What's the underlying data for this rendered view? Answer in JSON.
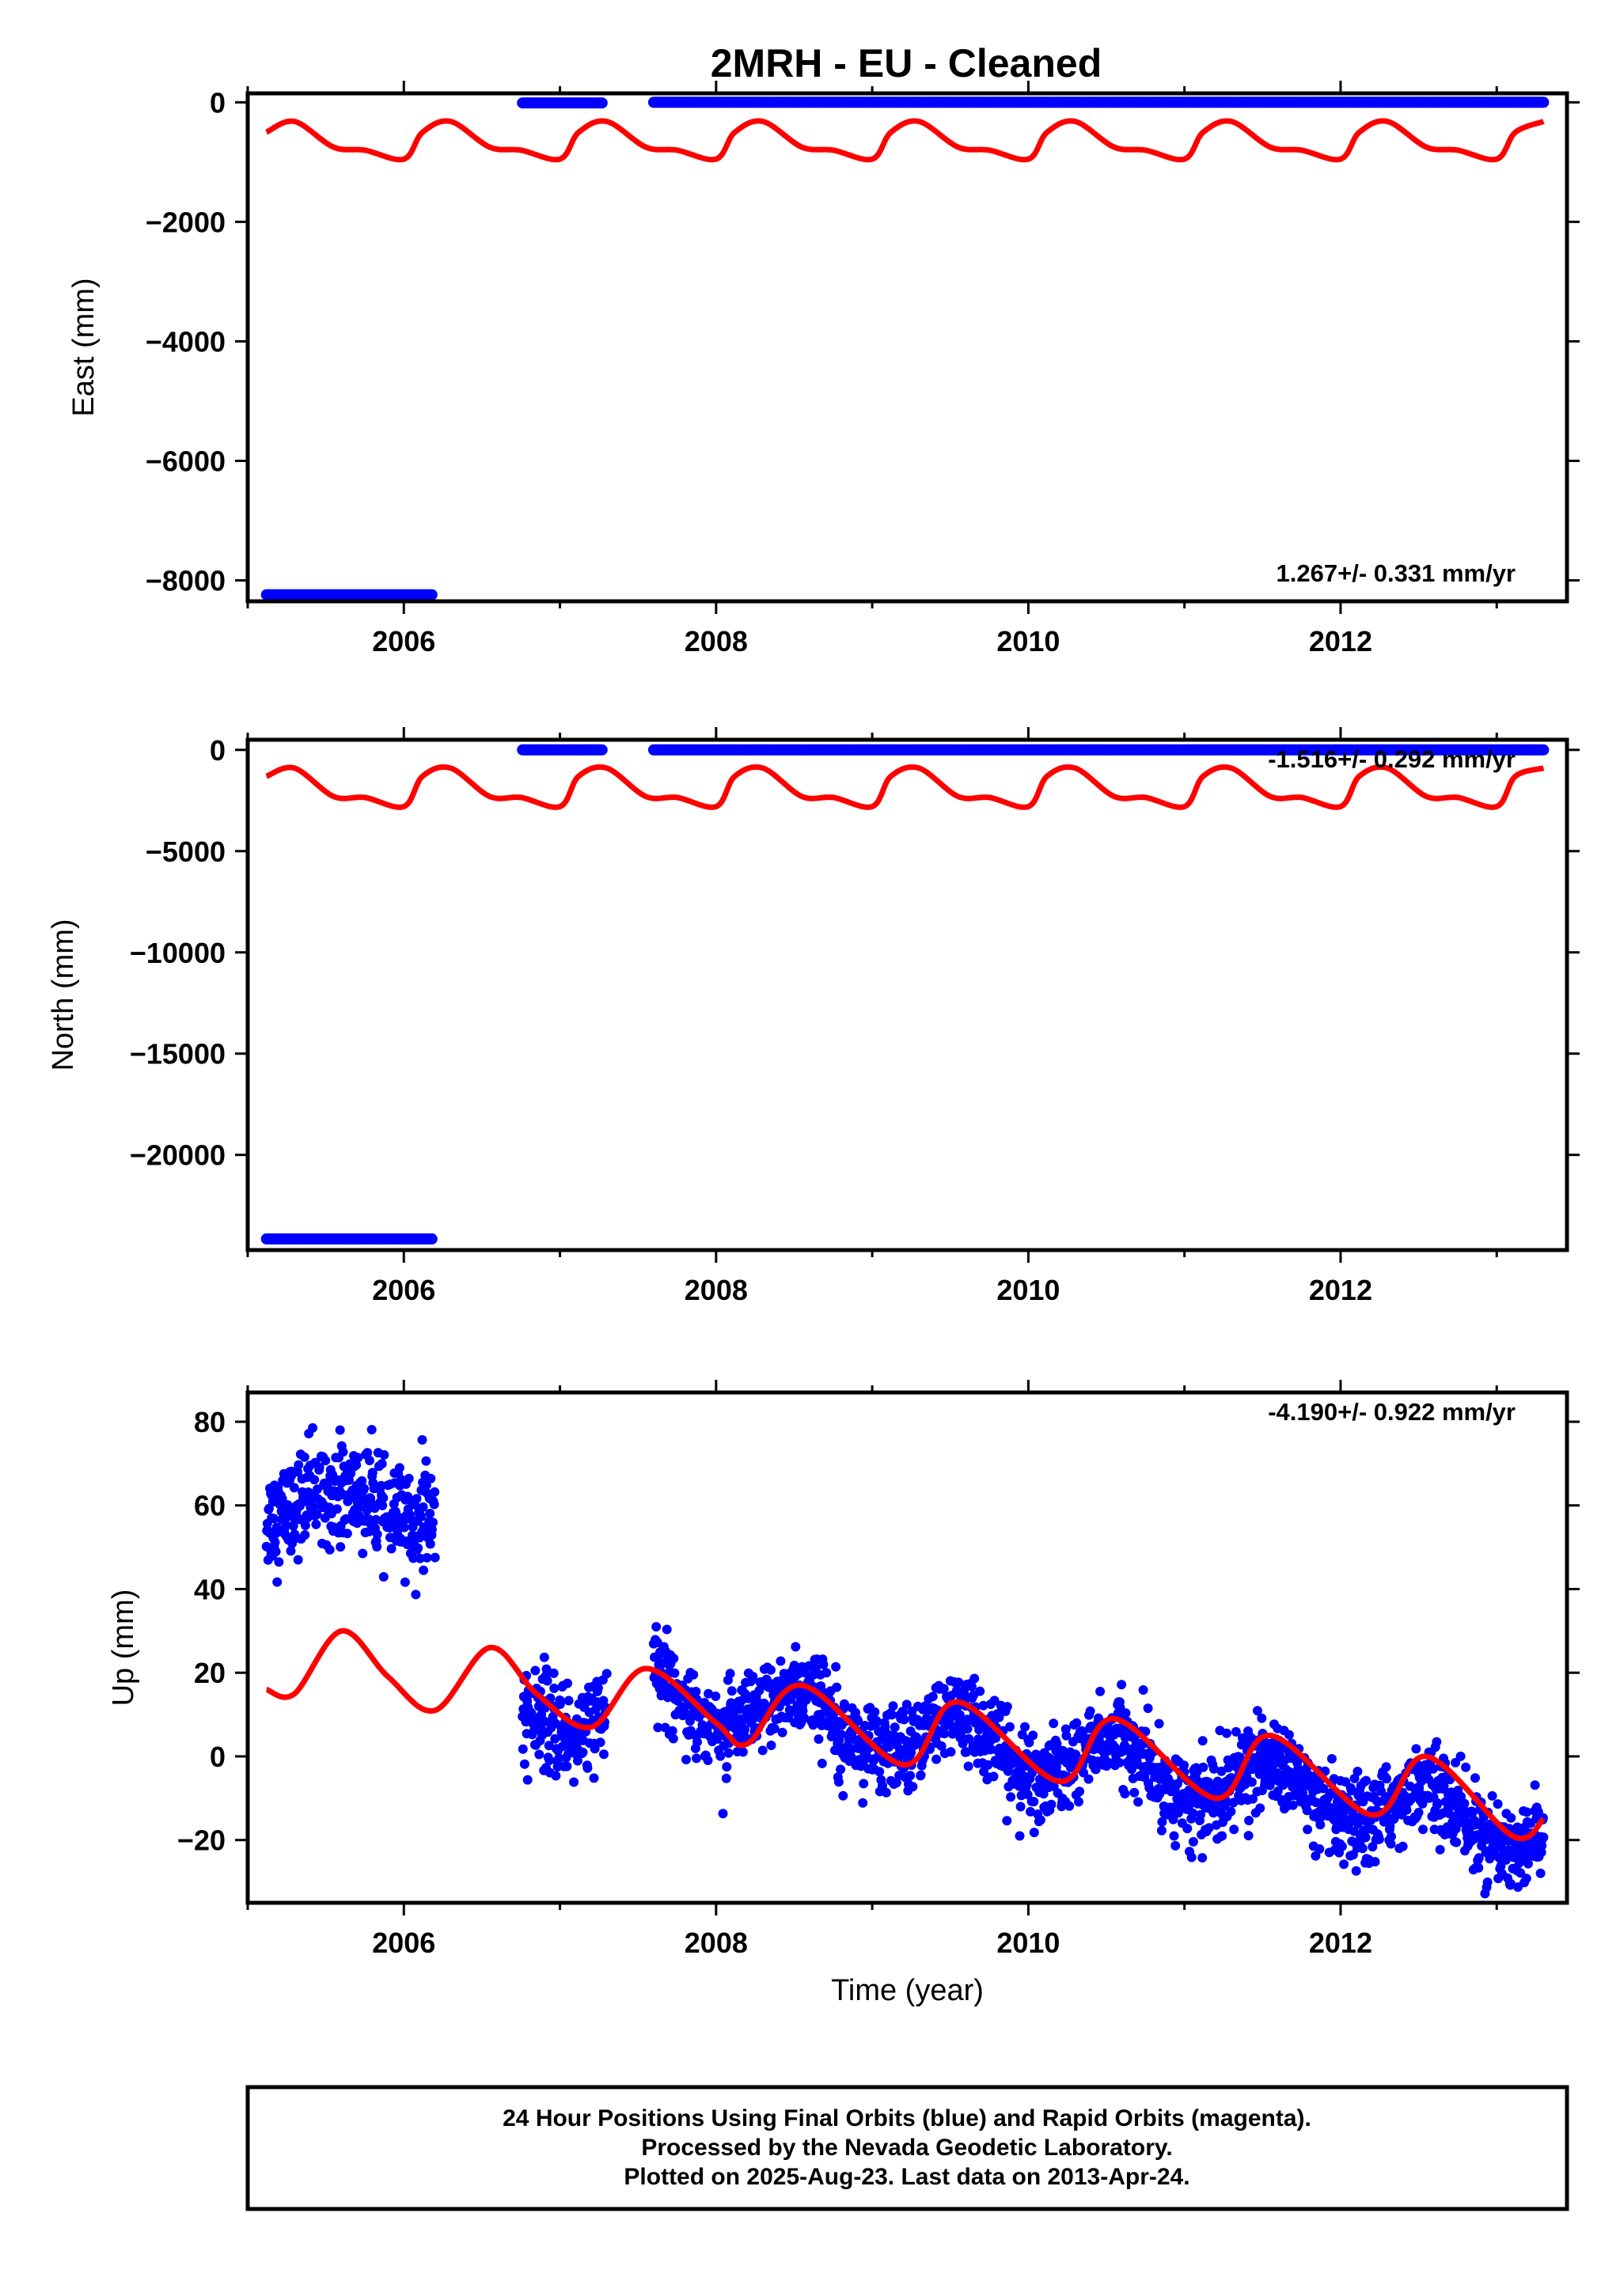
{
  "title": "2MRH  - EU - Cleaned",
  "colors": {
    "final_orbits": "#0000ff",
    "model": "#ff0000",
    "frame": "#000000"
  },
  "footer": {
    "line1": "24 Hour Positions Using Final Orbits (blue) and Rapid Orbits (magenta).",
    "line2": "Processed by the Nevada Geodetic Laboratory.",
    "line3": "Plotted on 2025-Aug-23. Last data on 2013-Apr-24."
  },
  "chart_data": [
    {
      "type": "scatter",
      "component": "east",
      "ylabel": "East (mm)",
      "xlabel": "",
      "xlim": [
        2005.0,
        2013.45
      ],
      "ylim": [
        -8350,
        150
      ],
      "x_ticks": [
        2006,
        2008,
        2010,
        2012
      ],
      "x_tick_labels": [
        "2006",
        "2008",
        "2010",
        "2012"
      ],
      "y_ticks": [
        0,
        -2000,
        -4000,
        -6000,
        -8000
      ],
      "y_tick_labels": [
        "0",
        "−2000",
        "−4000",
        "−6000",
        "−8000"
      ],
      "rate_label": "1.267+/- 0.331 mm/yr",
      "rate_position": "bottom-right",
      "grid": false,
      "data_segments": [
        {
          "x_start": 2005.12,
          "x_end": 2006.18,
          "y": -8240
        },
        {
          "x_start": 2006.76,
          "x_end": 2007.27,
          "y": -10
        },
        {
          "x_start": 2007.6,
          "x_end": 2013.3,
          "y": 0
        }
      ],
      "model_curve": {
        "x": [
          2005.12,
          2005.3,
          2005.55,
          2005.75,
          2006.0,
          2006.25,
          2006.55,
          2006.8,
          2007.0,
          2007.25,
          2007.55,
          2007.8,
          2008.0
        ],
        "y": [
          -500,
          -320,
          -750,
          -800,
          -950,
          -320,
          -750,
          -800,
          -950,
          -300,
          -780,
          -790,
          -950
        ],
        "period_years": 1.0
      }
    },
    {
      "type": "scatter",
      "component": "north",
      "ylabel": "North (mm)",
      "xlabel": "",
      "xlim": [
        2005.0,
        2013.45
      ],
      "ylim": [
        -24700,
        500
      ],
      "x_ticks": [
        2006,
        2008,
        2010,
        2012
      ],
      "x_tick_labels": [
        "2006",
        "2008",
        "2010",
        "2012"
      ],
      "y_ticks": [
        0,
        -5000,
        -10000,
        -15000,
        -20000
      ],
      "y_tick_labels": [
        "0",
        "−5000",
        "−10000",
        "−15000",
        "−20000"
      ],
      "rate_label": "-1.516+/- 0.292 mm/yr",
      "rate_position": "top-right",
      "grid": false,
      "data_segments": [
        {
          "x_start": 2005.12,
          "x_end": 2006.18,
          "y": -24150
        },
        {
          "x_start": 2006.76,
          "x_end": 2007.27,
          "y": 0
        },
        {
          "x_start": 2007.6,
          "x_end": 2013.3,
          "y": 0
        }
      ],
      "model_curve": {
        "x": [
          2005.12,
          2005.3,
          2005.55,
          2005.75,
          2006.0,
          2006.25,
          2006.55,
          2006.8,
          2007.0,
          2007.25
        ],
        "y": [
          -1300,
          -900,
          -2300,
          -2350,
          -2800,
          -900,
          -2300,
          -2350,
          -2750,
          -900
        ],
        "period_years": 1.0
      }
    },
    {
      "type": "scatter",
      "component": "up",
      "ylabel": "Up (mm)",
      "xlabel": "Time (year)",
      "xlim": [
        2005.0,
        2013.45
      ],
      "ylim": [
        -35,
        87
      ],
      "x_ticks": [
        2006,
        2008,
        2010,
        2012
      ],
      "x_tick_labels": [
        "2006",
        "2008",
        "2010",
        "2012"
      ],
      "y_ticks": [
        80,
        60,
        40,
        20,
        0,
        -20
      ],
      "y_tick_labels": [
        "80",
        "60",
        "40",
        "20",
        "0",
        "−20"
      ],
      "rate_label": "-4.190+/- 0.922 mm/yr",
      "rate_position": "top-right",
      "grid": false,
      "trend_segments": [
        {
          "x_start": 2005.12,
          "x_end": 2006.2,
          "mean_y": 60,
          "scatter_sd": 6
        },
        {
          "x_start": 2006.76,
          "x_end": 2007.3,
          "mean_y": 10,
          "scatter_sd": 6
        },
        {
          "x_start": 2007.6,
          "x_end": 2013.3,
          "mean_start": 15,
          "mean_end": -18,
          "scatter_sd": 5
        }
      ],
      "model_curve": {
        "x": [
          2005.12,
          2005.3,
          2005.6,
          2005.9,
          2006.2,
          2006.55,
          2006.85,
          2007.2,
          2007.55,
          2008.0,
          2008.2,
          2008.55,
          2009.2,
          2009.55,
          2010.2,
          2010.55,
          2011.2,
          2011.55,
          2012.2,
          2012.55,
          2013.1,
          2013.3
        ],
        "y": [
          16,
          15,
          30,
          19,
          11,
          26,
          15,
          7,
          21,
          8,
          3,
          17,
          -2,
          13,
          -6,
          9,
          -10,
          5,
          -14,
          0,
          -19,
          -15
        ]
      }
    }
  ]
}
